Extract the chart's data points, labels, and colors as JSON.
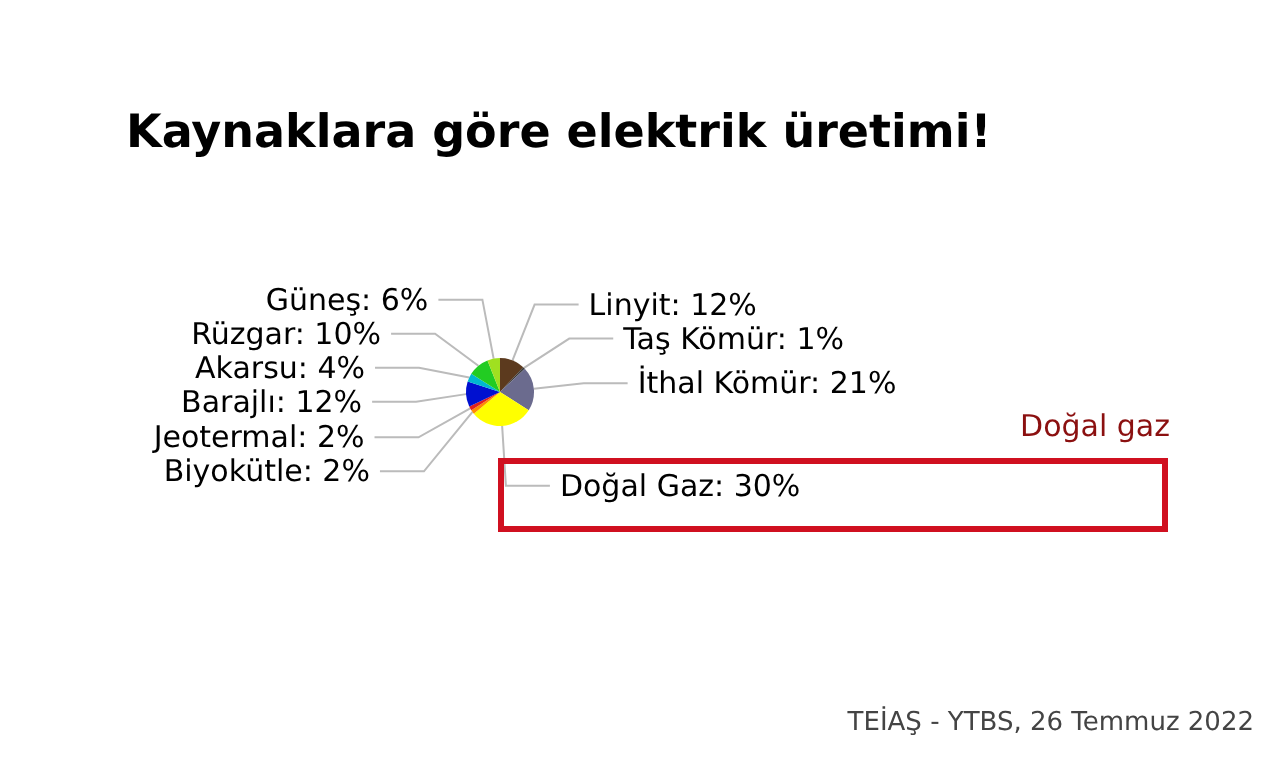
{
  "chart_data": {
    "type": "pie",
    "title": "Kaynaklara göre elektrik üretimi!",
    "categories": [
      "Linyit",
      "Taş Kömür",
      "İthal Kömür",
      "Doğal Gaz",
      "Biyokütle",
      "Jeotermal",
      "Barajlı",
      "Akarsu",
      "Rüzgar",
      "Güneş"
    ],
    "values": [
      12,
      1,
      21,
      30,
      2,
      2,
      12,
      4,
      10,
      6
    ],
    "value_labels": [
      "12%",
      "1%",
      "21%",
      "30%",
      "2%",
      "2%",
      "12%",
      "4%",
      "10%",
      "6%"
    ],
    "colors": [
      "#5c3a1e",
      "#3a3a3a",
      "#6b6b8e",
      "#ffff00",
      "#ff8c00",
      "#e02020",
      "#0010d0",
      "#00b8d0",
      "#22cc22",
      "#a0e020"
    ],
    "annotations": [
      "Doğal gaz",
      "TEİAŞ - YTBS, 26 Temmuz 2022"
    ]
  }
}
